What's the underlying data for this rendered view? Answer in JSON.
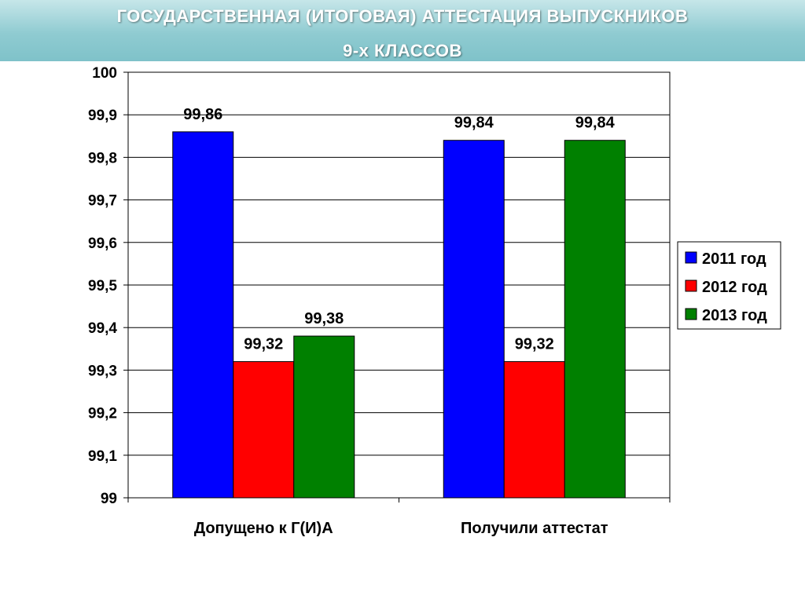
{
  "header": {
    "title_line1": "ГОСУДАРСТВЕННАЯ (ИТОГОВАЯ) АТТЕСТАЦИЯ ВЫПУСКНИКОВ",
    "title_line2": "9-х КЛАССОВ"
  },
  "chart_data": {
    "type": "bar",
    "categories": [
      "Допущено к Г(И)А",
      "Получили аттестат"
    ],
    "series": [
      {
        "name": "2011 год",
        "color": "#0000ff",
        "values": [
          99.86,
          99.84
        ]
      },
      {
        "name": "2012 год",
        "color": "#ff0000",
        "values": [
          99.32,
          99.32
        ]
      },
      {
        "name": "2013 год",
        "color": "#008000",
        "values": [
          99.38,
          99.84
        ]
      }
    ],
    "data_labels": [
      [
        "99,86",
        "99,84"
      ],
      [
        "99,32",
        "99,32"
      ],
      [
        "99,38",
        "99,84"
      ]
    ],
    "ylim": [
      99,
      100
    ],
    "yticks": [
      {
        "value": 99,
        "label": "99"
      },
      {
        "value": 99.1,
        "label": "99,1"
      },
      {
        "value": 99.2,
        "label": "99,2"
      },
      {
        "value": 99.3,
        "label": "99,3"
      },
      {
        "value": 99.4,
        "label": "99,4"
      },
      {
        "value": 99.5,
        "label": "99,5"
      },
      {
        "value": 99.6,
        "label": "99,6"
      },
      {
        "value": 99.7,
        "label": "99,7"
      },
      {
        "value": 99.8,
        "label": "99,8"
      },
      {
        "value": 99.9,
        "label": "99,9"
      },
      {
        "value": 100,
        "label": "100"
      }
    ],
    "grid": true,
    "legend": "right"
  }
}
